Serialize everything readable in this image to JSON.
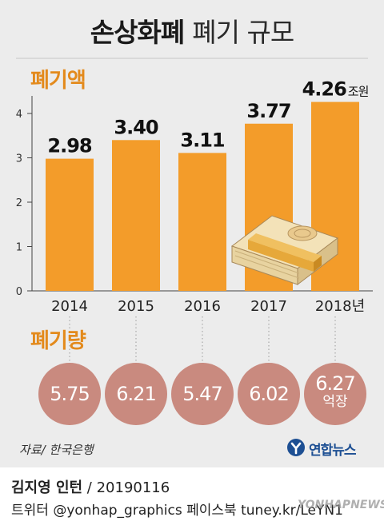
{
  "title": "손상화폐",
  "title_sub": "폐기 규모",
  "section_amount": "폐기액",
  "section_volume": "폐기량",
  "colors": {
    "bar": "#f39c2a",
    "bubble": "#c98a7f",
    "accent": "#e38a1c",
    "background": "#ececec"
  },
  "chart_data": {
    "type": "bar",
    "categories": [
      "2014",
      "2015",
      "2016",
      "2017",
      "2018년"
    ],
    "values": [
      2.98,
      3.4,
      3.11,
      3.77,
      4.26
    ],
    "value_labels": [
      "2.98",
      "3.40",
      "3.11",
      "3.77",
      "4.26"
    ],
    "value_unit": "조원",
    "ylim": [
      0,
      4.5
    ],
    "yticks": [
      "0",
      "1",
      "2",
      "3",
      "4"
    ],
    "grid": false,
    "volume": {
      "labels": [
        "5.75",
        "6.21",
        "5.47",
        "6.02",
        "6.27"
      ],
      "values": [
        5.75,
        6.21,
        5.47,
        6.02,
        6.27
      ],
      "unit": "억장"
    }
  },
  "source": "자료/ 한국은행",
  "logo": {
    "text": "연합뉴스",
    "icon": "yonhap-logo-icon"
  },
  "credit": {
    "name": "김지영 인턴",
    "date": " / 20190116"
  },
  "social": "트위터 @yonhap_graphics  페이스북 tuney.kr/LeYN1",
  "watermark": "YONHAPNEWS",
  "illustration": "banknote-bundle-icon"
}
